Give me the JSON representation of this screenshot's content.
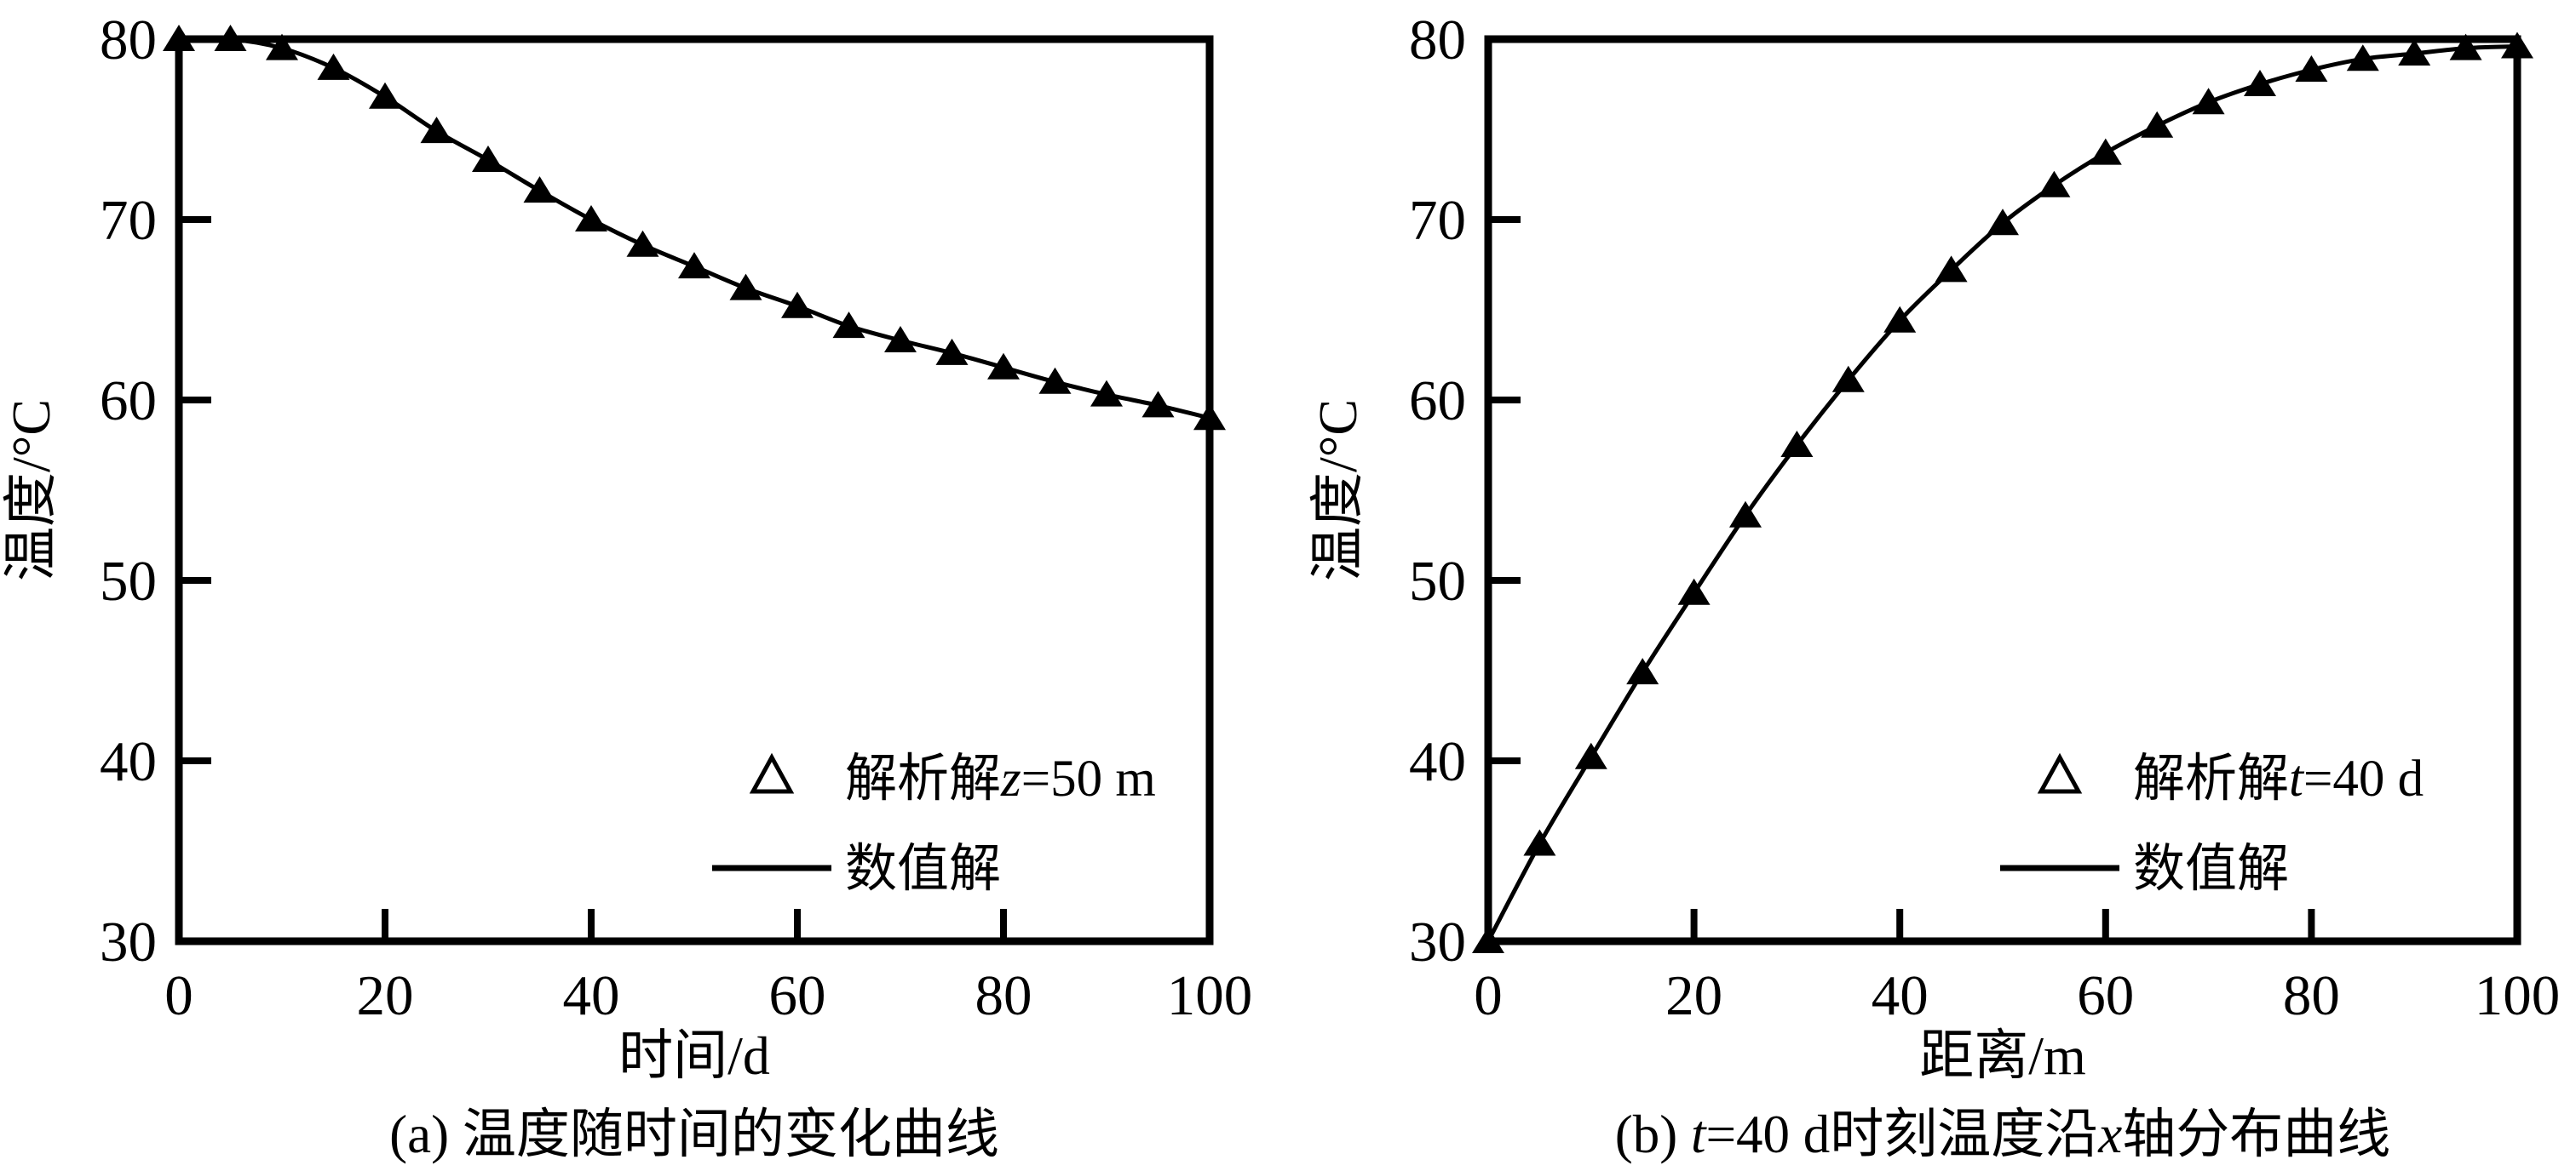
{
  "page": {
    "background": "#ffffff",
    "ink": "#000000"
  },
  "chart_data": [
    {
      "type": "line",
      "panel_id": "a",
      "caption": "(a) 温度随时间的变化曲线",
      "caption_segments": [
        {
          "text": "(a) 温度随时间的变化曲线",
          "italic": false
        }
      ],
      "xlabel": "时间/d",
      "ylabel": "温度/°C",
      "xlim": [
        0,
        100
      ],
      "ylim": [
        30,
        80
      ],
      "xticks": [
        0,
        20,
        40,
        60,
        80,
        100
      ],
      "yticks": [
        30,
        40,
        50,
        60,
        70,
        80
      ],
      "grid": false,
      "legend_position": "inside lower right",
      "legend": [
        {
          "handle": "triangle-open",
          "label": "解析解z=50 m",
          "label_segments": [
            {
              "text": "解析解",
              "italic": false
            },
            {
              "text": "z",
              "italic": true
            },
            {
              "text": "=50 m",
              "italic": false
            }
          ]
        },
        {
          "handle": "solid-line",
          "label": "数值解",
          "label_segments": [
            {
              "text": "数值解",
              "italic": false
            }
          ]
        }
      ],
      "x": [
        0,
        5,
        10,
        15,
        20,
        25,
        30,
        35,
        40,
        45,
        50,
        55,
        60,
        65,
        70,
        75,
        80,
        85,
        90,
        95,
        100
      ],
      "series": [
        {
          "name": "解析解z=50 m",
          "style": "filled-triangle-markers",
          "values": [
            80.0,
            80.0,
            79.5,
            78.4,
            76.8,
            74.9,
            73.3,
            71.6,
            70.0,
            68.6,
            67.4,
            66.2,
            65.2,
            64.1,
            63.3,
            62.6,
            61.8,
            61.0,
            60.3,
            59.7,
            59.0
          ]
        },
        {
          "name": "数值解",
          "style": "solid-line",
          "values": [
            80.0,
            80.0,
            79.5,
            78.4,
            76.8,
            74.9,
            73.3,
            71.6,
            70.0,
            68.6,
            67.4,
            66.2,
            65.2,
            64.1,
            63.3,
            62.6,
            61.8,
            61.0,
            60.3,
            59.7,
            59.0
          ]
        }
      ]
    },
    {
      "type": "line",
      "panel_id": "b",
      "caption": "(b) t=40 d时刻温度沿x轴分布曲线",
      "caption_segments": [
        {
          "text": "(b) ",
          "italic": false
        },
        {
          "text": "t",
          "italic": true
        },
        {
          "text": "=40 d时刻温度沿",
          "italic": false
        },
        {
          "text": "x",
          "italic": true
        },
        {
          "text": "轴分布曲线",
          "italic": false
        }
      ],
      "xlabel": "距离/m",
      "ylabel": "温度/°C",
      "xlim": [
        0,
        100
      ],
      "ylim": [
        30,
        80
      ],
      "xticks": [
        0,
        20,
        40,
        60,
        80,
        100
      ],
      "yticks": [
        30,
        40,
        50,
        60,
        70,
        80
      ],
      "grid": false,
      "legend_position": "inside lower right",
      "legend": [
        {
          "handle": "triangle-open",
          "label": "解析解t=40 d",
          "label_segments": [
            {
              "text": "解析解",
              "italic": false
            },
            {
              "text": "t",
              "italic": true
            },
            {
              "text": "=40 d",
              "italic": false
            }
          ]
        },
        {
          "handle": "solid-line",
          "label": "数值解",
          "label_segments": [
            {
              "text": "数值解",
              "italic": false
            }
          ]
        }
      ],
      "x": [
        0,
        5,
        10,
        15,
        20,
        25,
        30,
        35,
        40,
        45,
        50,
        55,
        60,
        65,
        70,
        75,
        80,
        85,
        90,
        95,
        100
      ],
      "series": [
        {
          "name": "解析解t=40 d",
          "style": "filled-triangle-markers",
          "values": [
            30.0,
            35.4,
            40.2,
            44.9,
            49.3,
            53.6,
            57.5,
            61.1,
            64.4,
            67.2,
            69.8,
            71.9,
            73.7,
            75.2,
            76.5,
            77.5,
            78.3,
            78.9,
            79.2,
            79.5,
            79.6
          ]
        },
        {
          "name": "数值解",
          "style": "solid-line",
          "values": [
            30.0,
            35.4,
            40.2,
            44.9,
            49.3,
            53.6,
            57.5,
            61.1,
            64.4,
            67.2,
            69.8,
            71.9,
            73.7,
            75.2,
            76.5,
            77.5,
            78.3,
            78.9,
            79.2,
            79.5,
            79.6
          ]
        }
      ]
    }
  ]
}
